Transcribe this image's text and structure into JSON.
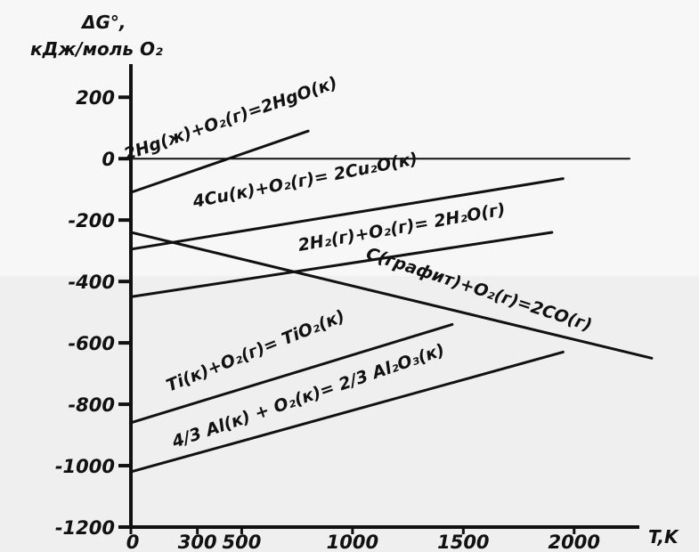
{
  "chart_data": {
    "type": "line",
    "title": "",
    "ylabel_line1": "ΔG°,",
    "ylabel_line2": "кДж/моль O₂",
    "xlabel": "T,K",
    "xlim": [
      0,
      2250
    ],
    "ylim": [
      -1200,
      250
    ],
    "x_ticks": [
      0,
      300,
      500,
      1000,
      1500,
      2000
    ],
    "y_ticks": [
      200,
      0,
      -200,
      -400,
      -600,
      -800,
      -1000,
      -1200
    ],
    "x_tick_labels": [
      "0",
      "300",
      "500",
      "1000",
      "1500",
      "2000"
    ],
    "y_tick_labels": [
      "200",
      "0",
      "-200",
      "-400",
      "-600",
      "-800",
      "-1000",
      "-1200"
    ],
    "grid": false,
    "series": [
      {
        "name": "2Hg(ж)+O₂(г)=2HgO(к)",
        "x": [
          0,
          800
        ],
        "y": [
          -110,
          90
        ]
      },
      {
        "name": "4Cu(к)+O₂(г)= 2Cu₂O(к)",
        "x": [
          0,
          1950
        ],
        "y": [
          -295,
          -65
        ]
      },
      {
        "name": "2H₂(г)+O₂(г)= 2H₂O(г)",
        "x": [
          0,
          1900
        ],
        "y": [
          -450,
          -240
        ]
      },
      {
        "name": "C(графит)+O₂(г)=2CO(г)",
        "x": [
          0,
          2350
        ],
        "y": [
          -240,
          -650
        ]
      },
      {
        "name": "Ti(к)+O₂(г)= TiO₂(к)",
        "x": [
          0,
          1450
        ],
        "y": [
          -860,
          -540
        ]
      },
      {
        "name": "4/3 Al(к) + O₂(к)= 2/3 Al₂O₃(к)",
        "x": [
          0,
          1950
        ],
        "y": [
          -1020,
          -630
        ]
      },
      {
        "name": "",
        "x": [
          0,
          2250
        ],
        "y": [
          0,
          0
        ]
      }
    ]
  }
}
